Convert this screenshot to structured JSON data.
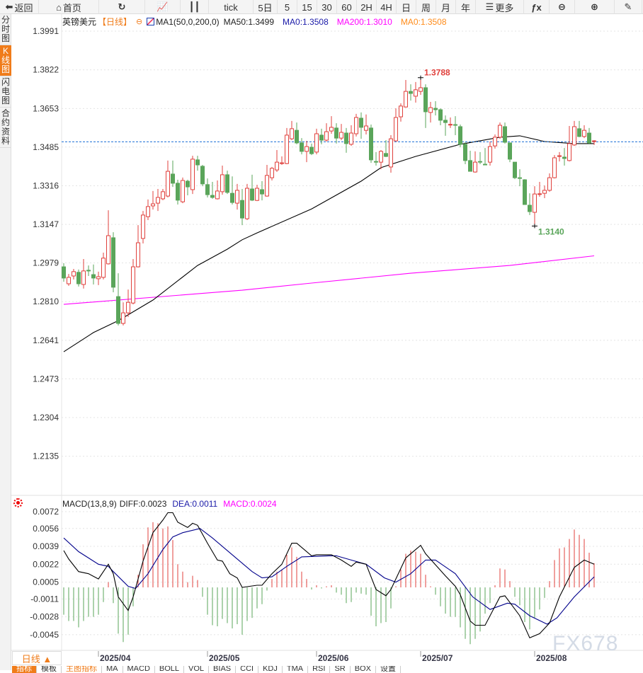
{
  "toolbar": {
    "items": [
      {
        "label": "返回",
        "icon": "back-arrow-icon"
      },
      {
        "label": "首页",
        "icon": "home-icon"
      },
      {
        "label": "",
        "icon": "refresh-icon"
      },
      {
        "label": "",
        "icon": "line-chart-icon"
      },
      {
        "label": "",
        "icon": "candlestick-icon"
      },
      {
        "label": "tick"
      },
      {
        "label": "5日"
      },
      {
        "label": "5"
      },
      {
        "label": "15"
      },
      {
        "label": "30"
      },
      {
        "label": "60"
      },
      {
        "label": "2H"
      },
      {
        "label": "4H"
      },
      {
        "label": "日"
      },
      {
        "label": "周"
      },
      {
        "label": "月"
      },
      {
        "label": "年"
      },
      {
        "label": "更多",
        "icon": "menu-icon"
      },
      {
        "label": "",
        "icon": "fx-icon"
      },
      {
        "label": "",
        "icon": "zoom-out-icon"
      },
      {
        "label": "",
        "icon": "zoom-in-icon"
      },
      {
        "label": "",
        "icon": "pen-icon"
      }
    ]
  },
  "sidebar": {
    "tabs": [
      {
        "label": "分时图"
      },
      {
        "label": "K线图",
        "active": true
      },
      {
        "label": "闪电图"
      },
      {
        "label": "合约资料"
      }
    ]
  },
  "legend": {
    "symbol": "英镑美元",
    "period": "【日线】",
    "ma_params": "MA1(50,0,200,0)",
    "ma50": "MA50:1.3499",
    "ma0a": "MA0:1.3508",
    "ma200": "MA200:1.3010",
    "ma0b": "MA0:1.3508"
  },
  "macd_legend": {
    "params": "MACD(13,8,9)",
    "diff": "DIFF:0.0023",
    "dea": "DEA:0.0011",
    "macd": "MACD:0.0024"
  },
  "colors": {
    "up": "#e0403c",
    "down": "#5aa55a",
    "ma50": "#000000",
    "ma200": "#ff00ff",
    "dea": "#00008b",
    "diff": "#000000",
    "accent": "#f07c1a",
    "current": "#1a6fd6"
  },
  "period_box": "日线 ▲",
  "bottom_tabs": [
    "指标",
    "模板",
    "主图指标",
    "MA",
    "MACD",
    "BOLL",
    "VOL",
    "BIAS",
    "CCI",
    "KDJ",
    "TMA",
    "RSI",
    "SR",
    "BOX",
    "设置"
  ],
  "watermark": "FX678",
  "chart_data": {
    "type": "candlestick",
    "price_ticks": [
      "1.3991",
      "1.3822",
      "1.3653",
      "1.3485",
      "1.3316",
      "1.3147",
      "1.2979",
      "1.2810",
      "1.2641",
      "1.2473",
      "1.2304",
      "1.2135"
    ],
    "ylim": [
      1.2135,
      1.3991
    ],
    "current_price": 1.3508,
    "high_label": "1.3788",
    "high_bar": 72,
    "high_value": 1.3788,
    "low_label": "1.3140",
    "low_bar": 95,
    "low_value": 1.314,
    "date_ticks": [
      {
        "label": "2025/04",
        "bar": 7
      },
      {
        "label": "2025/05",
        "bar": 29
      },
      {
        "label": "2025/06",
        "bar": 51
      },
      {
        "label": "2025/07",
        "bar": 72
      },
      {
        "label": "2025/08",
        "bar": 95
      }
    ],
    "ohlc": [
      [
        1.2962,
        1.2978,
        1.2897,
        1.2913
      ],
      [
        1.2888,
        1.2931,
        1.2879,
        1.2916
      ],
      [
        1.2922,
        1.2953,
        1.2907,
        1.2941
      ],
      [
        1.2938,
        1.295,
        1.2876,
        1.2888
      ],
      [
        1.2885,
        1.2996,
        1.2867,
        1.2944
      ],
      [
        1.2947,
        1.2968,
        1.2922,
        1.2944
      ],
      [
        1.2928,
        1.2972,
        1.2885,
        1.2913
      ],
      [
        1.291,
        1.2941,
        1.2882,
        1.2919
      ],
      [
        1.2916,
        1.3024,
        1.2907,
        1.3
      ],
      [
        1.2975,
        1.3209,
        1.2972,
        1.3098
      ],
      [
        1.3089,
        1.3113,
        1.2851,
        1.2873
      ],
      [
        1.2832,
        1.2934,
        1.2706,
        1.2715
      ],
      [
        1.2715,
        1.2807,
        1.2706,
        1.2761
      ],
      [
        1.2761,
        1.2863,
        1.2743,
        1.2807
      ],
      [
        1.2804,
        1.2996,
        1.2798,
        1.2962
      ],
      [
        1.2962,
        1.3144,
        1.2959,
        1.3067
      ],
      [
        1.3086,
        1.3206,
        1.3064,
        1.3188
      ],
      [
        1.3181,
        1.3256,
        1.3166,
        1.3225
      ],
      [
        1.3228,
        1.3293,
        1.3212,
        1.3237
      ],
      [
        1.324,
        1.3302,
        1.3206,
        1.3265
      ],
      [
        1.3259,
        1.3302,
        1.3253,
        1.329
      ],
      [
        1.3271,
        1.3426,
        1.3265,
        1.3379
      ],
      [
        1.3367,
        1.3426,
        1.3311,
        1.3327
      ],
      [
        1.3327,
        1.3342,
        1.3234,
        1.3253
      ],
      [
        1.3246,
        1.3352,
        1.324,
        1.3339
      ],
      [
        1.3336,
        1.3342,
        1.3274,
        1.3311
      ],
      [
        1.3299,
        1.3447,
        1.328,
        1.3432
      ],
      [
        1.3429,
        1.3447,
        1.3382,
        1.3407
      ],
      [
        1.3401,
        1.3407,
        1.3314,
        1.3324
      ],
      [
        1.3321,
        1.3348,
        1.3265,
        1.3277
      ],
      [
        1.3274,
        1.3333,
        1.3259,
        1.3265
      ],
      [
        1.3259,
        1.3339,
        1.3256,
        1.3293
      ],
      [
        1.329,
        1.3404,
        1.3277,
        1.3364
      ],
      [
        1.3364,
        1.3382,
        1.328,
        1.3287
      ],
      [
        1.3283,
        1.3357,
        1.3234,
        1.3243
      ],
      [
        1.324,
        1.3324,
        1.3212,
        1.3296
      ],
      [
        1.3252,
        1.3302,
        1.3144,
        1.3175
      ],
      [
        1.3172,
        1.3324,
        1.3166,
        1.3305
      ],
      [
        1.3302,
        1.3364,
        1.3249,
        1.3253
      ],
      [
        1.3252,
        1.332,
        1.3249,
        1.3305
      ],
      [
        1.3299,
        1.3336,
        1.3252,
        1.328
      ],
      [
        1.3271,
        1.3407,
        1.3268,
        1.3361
      ],
      [
        1.3351,
        1.3398,
        1.3339,
        1.3392
      ],
      [
        1.3385,
        1.3472,
        1.3376,
        1.3419
      ],
      [
        1.3413,
        1.3444,
        1.3407,
        1.3416
      ],
      [
        1.3413,
        1.3568,
        1.341,
        1.3537
      ],
      [
        1.3521,
        1.3599,
        1.3515,
        1.3565
      ],
      [
        1.3558,
        1.3592,
        1.3497,
        1.3503
      ],
      [
        1.3503,
        1.3524,
        1.3453,
        1.3466
      ],
      [
        1.3466,
        1.3512,
        1.3419,
        1.3487
      ],
      [
        1.3484,
        1.35,
        1.345,
        1.3456
      ],
      [
        1.3463,
        1.3565,
        1.3453,
        1.3543
      ],
      [
        1.3537,
        1.3565,
        1.3497,
        1.3515
      ],
      [
        1.3515,
        1.3589,
        1.3509,
        1.3552
      ],
      [
        1.3555,
        1.362,
        1.3543,
        1.3571
      ],
      [
        1.3568,
        1.3589,
        1.35,
        1.3524
      ],
      [
        1.3524,
        1.3586,
        1.3515,
        1.3549
      ],
      [
        1.3546,
        1.3568,
        1.346,
        1.35
      ],
      [
        1.3497,
        1.358,
        1.349,
        1.3546
      ],
      [
        1.3543,
        1.363,
        1.3531,
        1.3614
      ],
      [
        1.3611,
        1.3636,
        1.3521,
        1.3571
      ],
      [
        1.3558,
        1.3627,
        1.354,
        1.3577
      ],
      [
        1.3568,
        1.3583,
        1.3416,
        1.3429
      ],
      [
        1.3422,
        1.3463,
        1.3404,
        1.3419
      ],
      [
        1.3419,
        1.3472,
        1.3388,
        1.3466
      ],
      [
        1.3457,
        1.3515,
        1.3441,
        1.3444
      ],
      [
        1.3398,
        1.3537,
        1.3373,
        1.3521
      ],
      [
        1.3512,
        1.3654,
        1.3509,
        1.3614
      ],
      [
        1.3617,
        1.3676,
        1.3596,
        1.3664
      ],
      [
        1.366,
        1.3778,
        1.3657,
        1.3728
      ],
      [
        1.3728,
        1.3759,
        1.3688,
        1.3719
      ],
      [
        1.3707,
        1.3769,
        1.3679,
        1.3735
      ],
      [
        1.3728,
        1.3788,
        1.3713,
        1.3744
      ],
      [
        1.3744,
        1.3759,
        1.3568,
        1.3639
      ],
      [
        1.3636,
        1.3682,
        1.3592,
        1.3657
      ],
      [
        1.3654,
        1.3685,
        1.3623,
        1.3648
      ],
      [
        1.3648,
        1.3654,
        1.358,
        1.3602
      ],
      [
        1.3602,
        1.3623,
        1.3534,
        1.3592
      ],
      [
        1.3583,
        1.3614,
        1.3568,
        1.3584
      ],
      [
        1.3583,
        1.362,
        1.3537,
        1.358
      ],
      [
        1.3574,
        1.3583,
        1.3484,
        1.3497
      ],
      [
        1.3497,
        1.3506,
        1.341,
        1.3426
      ],
      [
        1.3426,
        1.3469,
        1.3379,
        1.3379
      ],
      [
        1.3376,
        1.3466,
        1.3373,
        1.3419
      ],
      [
        1.3422,
        1.3463,
        1.341,
        1.3421
      ],
      [
        1.341,
        1.3481,
        1.341,
        1.3409
      ],
      [
        1.3419,
        1.3509,
        1.3404,
        1.3487
      ],
      [
        1.349,
        1.354,
        1.3478,
        1.3528
      ],
      [
        1.3528,
        1.3592,
        1.3521,
        1.358
      ],
      [
        1.3574,
        1.3592,
        1.35,
        1.3506
      ],
      [
        1.3503,
        1.3503,
        1.3419,
        1.3432
      ],
      [
        1.3419,
        1.3419,
        1.3345,
        1.3351
      ],
      [
        1.3351,
        1.3388,
        1.3314,
        1.3348
      ],
      [
        1.3342,
        1.3345,
        1.3234,
        1.3234
      ],
      [
        1.3231,
        1.3283,
        1.3188,
        1.3203
      ],
      [
        1.32,
        1.3314,
        1.314,
        1.328
      ],
      [
        1.328,
        1.3333,
        1.3268,
        1.3281
      ],
      [
        1.3283,
        1.3317,
        1.3262,
        1.3296
      ],
      [
        1.3296,
        1.337,
        1.329,
        1.3351
      ],
      [
        1.3351,
        1.345,
        1.3348,
        1.3438
      ],
      [
        1.3444,
        1.3463,
        1.3422,
        1.3447
      ],
      [
        1.3441,
        1.3481,
        1.3404,
        1.3435
      ],
      [
        1.3426,
        1.3577,
        1.3422,
        1.35
      ],
      [
        1.3494,
        1.3599,
        1.349,
        1.3574
      ],
      [
        1.3565,
        1.3599,
        1.3528,
        1.3531
      ],
      [
        1.3531,
        1.358,
        1.3524,
        1.3558
      ],
      [
        1.3546,
        1.3568,
        1.3497,
        1.3503
      ],
      [
        1.3509,
        1.3515,
        1.3494,
        1.3512
      ]
    ],
    "ma50": [
      [
        0,
        1.2591
      ],
      [
        6,
        1.2675
      ],
      [
        11,
        1.2727
      ],
      [
        18,
        1.2817
      ],
      [
        27,
        1.2968
      ],
      [
        33,
        1.3039
      ],
      [
        36,
        1.308
      ],
      [
        39,
        1.311
      ],
      [
        50,
        1.3215
      ],
      [
        60,
        1.3336
      ],
      [
        64,
        1.3395
      ],
      [
        71,
        1.3444
      ],
      [
        80,
        1.3497
      ],
      [
        88,
        1.3528
      ],
      [
        92,
        1.3534
      ],
      [
        97,
        1.3509
      ],
      [
        103,
        1.35
      ],
      [
        107,
        1.35
      ]
    ],
    "ma200": [
      [
        0,
        1.2798
      ],
      [
        36,
        1.286
      ],
      [
        50,
        1.2891
      ],
      [
        70,
        1.2934
      ],
      [
        90,
        1.2968
      ],
      [
        107,
        1.301
      ]
    ],
    "macd_ticks": [
      "0.0072",
      "0.0056",
      "0.0039",
      "0.0022",
      "0.0005",
      "-0.0011",
      "-0.0028",
      "-0.0045"
    ],
    "macd_hist": [
      -0.0026,
      -0.0032,
      -0.0032,
      -0.0038,
      -0.0032,
      -0.0028,
      -0.0028,
      -0.0026,
      -0.0014,
      0.0005,
      -0.0015,
      -0.0044,
      -0.0052,
      -0.0045,
      -0.0018,
      0.0012,
      0.0041,
      0.0057,
      0.0062,
      0.0061,
      0.0056,
      0.0058,
      0.0045,
      0.0022,
      0.0015,
      0.0005,
      0.0011,
      0.0007,
      -0.0009,
      -0.0026,
      -0.0036,
      -0.0037,
      -0.003,
      -0.0034,
      -0.0039,
      -0.0035,
      -0.0045,
      -0.0032,
      -0.0029,
      -0.002,
      -0.0016,
      -0.0003,
      0.0008,
      0.0015,
      0.0017,
      0.0031,
      0.0038,
      0.0029,
      0.0015,
      0.0008,
      -0.0002,
      0.0002,
      -0.0001,
      0.0001,
      0.0002,
      -0.0005,
      -0.0007,
      -0.0015,
      -0.0014,
      -0.0005,
      -0.0006,
      -0.0007,
      -0.0027,
      -0.0037,
      -0.0034,
      -0.0033,
      -0.002,
      0.0001,
      0.0017,
      0.0032,
      0.0035,
      0.0034,
      0.0032,
      0.0012,
      0.0001,
      -0.0007,
      -0.0018,
      -0.0025,
      -0.0028,
      -0.0028,
      -0.0038,
      -0.0049,
      -0.0054,
      -0.0049,
      -0.0042,
      -0.0025,
      -0.0015,
      0.0002,
      0.0018,
      0.0017,
      0.0006,
      -0.0009,
      -0.0017,
      -0.0033,
      -0.004,
      -0.0029,
      -0.0021,
      -0.001,
      0.0006,
      0.0026,
      0.0037,
      0.0038,
      0.0046,
      0.0055,
      0.005,
      0.0046,
      0.0033,
      0.0023
    ],
    "diff": [
      [
        0,
        0.0035
      ],
      [
        1,
        0.0027
      ],
      [
        3,
        0.0015
      ],
      [
        5,
        0.0013
      ],
      [
        7,
        0.0008
      ],
      [
        9,
        0.0022
      ],
      [
        10,
        0.0013
      ],
      [
        11,
        -0.0009
      ],
      [
        13,
        -0.0022
      ],
      [
        14,
        -0.0009
      ],
      [
        16,
        0.0025
      ],
      [
        18,
        0.0052
      ],
      [
        20,
        0.0064
      ],
      [
        21,
        0.0071
      ],
      [
        22,
        0.0071
      ],
      [
        23,
        0.0062
      ],
      [
        25,
        0.0057
      ],
      [
        26,
        0.0061
      ],
      [
        27,
        0.0059
      ],
      [
        29,
        0.0042
      ],
      [
        31,
        0.0026
      ],
      [
        32,
        0.0025
      ],
      [
        33.5,
        0.0013
      ],
      [
        35,
        0.0009
      ],
      [
        36,
        0.0
      ],
      [
        39,
        0.0002
      ],
      [
        40,
        0.0002
      ],
      [
        42,
        0.0013
      ],
      [
        44,
        0.0022
      ],
      [
        46,
        0.0042
      ],
      [
        47,
        0.0042
      ],
      [
        50,
        0.003
      ],
      [
        51,
        0.0031
      ],
      [
        54,
        0.0031
      ],
      [
        56,
        0.0026
      ],
      [
        58,
        0.002
      ],
      [
        59,
        0.0024
      ],
      [
        61,
        0.0022
      ],
      [
        63,
        -0.0002
      ],
      [
        65,
        -0.0008
      ],
      [
        66,
        -0.0002
      ],
      [
        69,
        0.0028
      ],
      [
        72,
        0.004
      ],
      [
        73,
        0.0032
      ],
      [
        77,
        0.0011
      ],
      [
        79,
        0.0001
      ],
      [
        80,
        -0.0007
      ],
      [
        82,
        -0.0032
      ],
      [
        83,
        -0.0036
      ],
      [
        85,
        -0.0036
      ],
      [
        88,
        -0.0009
      ],
      [
        89,
        -0.0008
      ],
      [
        92,
        -0.0027
      ],
      [
        94,
        -0.0048
      ],
      [
        96,
        -0.0044
      ],
      [
        98,
        -0.0034
      ],
      [
        100,
        -0.0009
      ],
      [
        103,
        0.0019
      ],
      [
        105,
        0.0026
      ],
      [
        107,
        0.0022
      ]
    ],
    "dea": [
      [
        0,
        0.0047
      ],
      [
        3,
        0.0034
      ],
      [
        7,
        0.0022
      ],
      [
        9,
        0.002
      ],
      [
        10,
        0.0015
      ],
      [
        13,
        0.0001
      ],
      [
        14.5,
        -0.0001
      ],
      [
        17,
        0.0013
      ],
      [
        20,
        0.0036
      ],
      [
        22,
        0.0048
      ],
      [
        24,
        0.0052
      ],
      [
        27.5,
        0.0056
      ],
      [
        30,
        0.0047
      ],
      [
        34.5,
        0.0029
      ],
      [
        38,
        0.0015
      ],
      [
        40,
        0.0009
      ],
      [
        42,
        0.001
      ],
      [
        45,
        0.002
      ],
      [
        48,
        0.0029
      ],
      [
        53.5,
        0.003
      ],
      [
        55,
        0.003
      ],
      [
        58,
        0.0026
      ],
      [
        61,
        0.0022
      ],
      [
        64.7,
        0.0009
      ],
      [
        67,
        0.0005
      ],
      [
        70,
        0.0013
      ],
      [
        73,
        0.0026
      ],
      [
        75,
        0.0026
      ],
      [
        79,
        0.0013
      ],
      [
        82.5,
        -0.0009
      ],
      [
        86,
        -0.0021
      ],
      [
        89.5,
        -0.0015
      ],
      [
        91,
        -0.0016
      ],
      [
        94,
        -0.0027
      ],
      [
        97.5,
        -0.0035
      ],
      [
        99.5,
        -0.0029
      ],
      [
        103,
        -0.0009
      ],
      [
        107,
        0.001
      ]
    ]
  }
}
